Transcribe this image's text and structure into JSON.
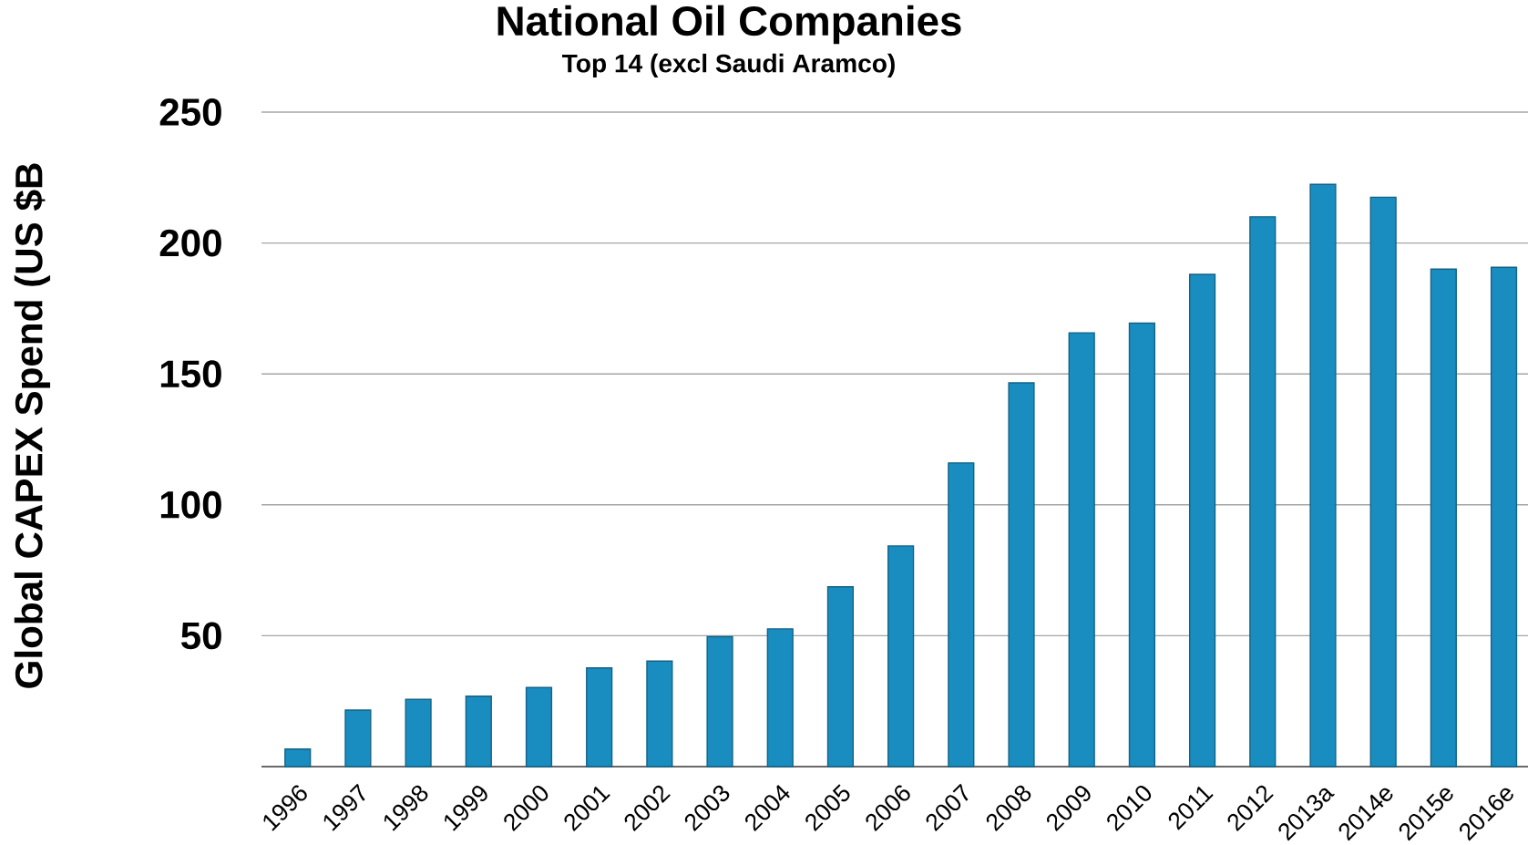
{
  "chart_data": {
    "type": "bar",
    "title": "National Oil Companies",
    "subtitle": "Top 14 (excl Saudi Aramco)",
    "ylabel": "Global CAPEX Spend (US $B",
    "categories": [
      "1996",
      "1997",
      "1998",
      "1999",
      "2000",
      "2001",
      "2002",
      "2003",
      "2004",
      "2005",
      "2006",
      "2007",
      "2008",
      "2009",
      "2010",
      "2011",
      "2012",
      "2013a",
      "2014e",
      "2015e",
      "2016e"
    ],
    "values": [
      6.7,
      21.6,
      25.7,
      26.9,
      30.2,
      37.7,
      40.3,
      49.6,
      52.6,
      68.7,
      84.3,
      116,
      146.6,
      165.7,
      169.4,
      188,
      210,
      222.4,
      217.5,
      190,
      190.7
    ],
    "color": "#1a8dc0",
    "ylim": [
      0,
      250
    ],
    "yticks": [
      {
        "value": 0,
        "label": null
      },
      50,
      100,
      150,
      200,
      250
    ],
    "grid": "y"
  }
}
